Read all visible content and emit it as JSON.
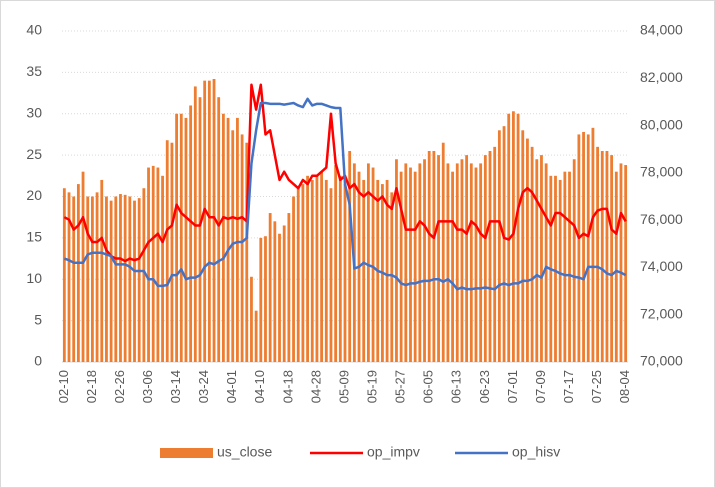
{
  "chart_data": {
    "type": "bar",
    "categories": [
      "02-10",
      null,
      null,
      null,
      null,
      null,
      "02-18",
      null,
      null,
      null,
      null,
      null,
      "02-26",
      null,
      null,
      null,
      null,
      null,
      "03-06",
      null,
      null,
      null,
      null,
      null,
      "03-14",
      null,
      null,
      null,
      null,
      null,
      "03-24",
      null,
      null,
      null,
      null,
      null,
      "04-01",
      null,
      null,
      null,
      null,
      null,
      "04-10",
      null,
      null,
      null,
      null,
      null,
      "04-18",
      null,
      null,
      null,
      null,
      null,
      "04-28",
      null,
      null,
      null,
      null,
      null,
      "05-09",
      null,
      null,
      null,
      null,
      null,
      "05-19",
      null,
      null,
      null,
      null,
      null,
      "05-27",
      null,
      null,
      null,
      null,
      null,
      "06-05",
      null,
      null,
      null,
      null,
      null,
      "06-13",
      null,
      null,
      null,
      null,
      null,
      "06-23",
      null,
      null,
      null,
      null,
      null,
      "07-01",
      null,
      null,
      null,
      null,
      null,
      "07-09",
      null,
      null,
      null,
      null,
      null,
      "07-17",
      null,
      null,
      null,
      null,
      null,
      "07-25",
      null,
      null,
      null,
      null,
      null,
      "08-04"
    ],
    "series": [
      {
        "name": "us_close",
        "type": "bar",
        "axis": "y2",
        "color": "#ed7d31",
        "values": [
          77350,
          77175,
          77000,
          77525,
          78050,
          77000,
          77000,
          77175,
          77700,
          77000,
          76825,
          77000,
          77105,
          77070,
          77000,
          76825,
          76930,
          77350,
          78225,
          78295,
          78225,
          77875,
          79380,
          79275,
          80500,
          80500,
          80325,
          80850,
          81655,
          81200,
          81900,
          81900,
          81970,
          81200,
          80500,
          80325,
          79800,
          80325,
          79625,
          79275,
          73605,
          72170,
          75250,
          75320,
          76300,
          75950,
          75425,
          75775,
          76300,
          77000,
          77350,
          77525,
          77875,
          77700,
          77875,
          78050,
          77700,
          77350,
          78330,
          77875,
          77525,
          78925,
          78400,
          78050,
          77700,
          78400,
          78225,
          77700,
          77525,
          77700,
          77175,
          78575,
          78050,
          78400,
          78225,
          78050,
          78400,
          78575,
          78925,
          78925,
          78750,
          79275,
          78400,
          78050,
          78400,
          78575,
          78750,
          78400,
          78225,
          78400,
          78750,
          78925,
          79100,
          79800,
          79975,
          80500,
          80605,
          80500,
          79800,
          79450,
          79100,
          78575,
          78750,
          78400,
          77875,
          77875,
          77700,
          78050,
          78050,
          78575,
          79625,
          79730,
          79625,
          79905,
          79100,
          78925,
          78925,
          78750,
          78050,
          78400,
          78330
        ]
      },
      {
        "name": "op_impv",
        "type": "line",
        "color": "#ff0000",
        "values": [
          17.5,
          17.2,
          16,
          16.5,
          17.5,
          15.5,
          14.5,
          14.5,
          15,
          13.5,
          12.8,
          12.5,
          12.5,
          12.2,
          12.5,
          12.3,
          12.5,
          13.5,
          14.5,
          15,
          15.5,
          14.5,
          16,
          16.5,
          19,
          18,
          17.5,
          17,
          16.5,
          16.5,
          18.5,
          17.5,
          17.5,
          16.5,
          17.5,
          17.3,
          17.5,
          17.3,
          17.5,
          17,
          33.5,
          30.5,
          33.5,
          27.5,
          28,
          25,
          22,
          23,
          22,
          21.5,
          21,
          22,
          21.5,
          22.5,
          22.5,
          23,
          23.5,
          30,
          24,
          22,
          22.5,
          21,
          21.5,
          20.5,
          20,
          20.5,
          20,
          19.5,
          20,
          19,
          18.5,
          21,
          18.5,
          16,
          16,
          16,
          17,
          16.5,
          15.5,
          15,
          17,
          17,
          17,
          17,
          16,
          16,
          15.5,
          17,
          16.5,
          15.5,
          15,
          17,
          17,
          17,
          15,
          14.8,
          15.5,
          18.5,
          20.5,
          21,
          20.5,
          19.5,
          18.5,
          17.5,
          16.5,
          18,
          18,
          17.5,
          17,
          16.5,
          15,
          15.5,
          15.2,
          17.5,
          18.3,
          18.5,
          18.5,
          16,
          15.5,
          18,
          17
        ]
      },
      {
        "name": "op_hisv",
        "type": "line",
        "color": "#4472c4",
        "values": [
          12.5,
          12.3,
          12,
          12,
          12,
          13,
          13.2,
          13.2,
          13.2,
          13,
          12.8,
          11.8,
          11.8,
          11.8,
          11.5,
          11,
          11,
          11,
          10,
          10,
          9.2,
          9.2,
          9.3,
          10.5,
          10.5,
          11.2,
          10,
          10.2,
          10.2,
          10.5,
          11.5,
          12,
          11.8,
          12.2,
          12.5,
          13.5,
          14.3,
          14.5,
          14.5,
          15,
          24,
          28,
          31.3,
          31.3,
          31.2,
          31.2,
          31.2,
          31.1,
          31.2,
          31.3,
          31,
          30.8,
          31.8,
          31,
          31.2,
          31.2,
          31,
          30.8,
          30.7,
          30.7,
          21.5,
          19,
          11.3,
          11.5,
          12,
          11.7,
          11.5,
          11,
          10.8,
          10.5,
          10.5,
          10.2,
          9.5,
          9.3,
          9.5,
          9.5,
          9.7,
          9.8,
          9.8,
          10,
          10,
          9.7,
          10,
          9.5,
          8.8,
          9,
          8.8,
          8.8,
          8.9,
          8.9,
          9,
          8.9,
          8.8,
          9.3,
          9.5,
          9.3,
          9.5,
          9.5,
          9.8,
          9.8,
          10,
          10.5,
          10.2,
          11.5,
          11.2,
          11,
          10.7,
          10.5,
          10.5,
          10.3,
          10.2,
          10,
          11.5,
          11.5,
          11.5,
          11.2,
          10.7,
          10.5,
          11,
          10.8,
          10.5
        ]
      }
    ],
    "ylim": [
      0,
      40
    ],
    "yticks": [
      0,
      5,
      10,
      15,
      20,
      25,
      30,
      35,
      40
    ],
    "y2lim": [
      70000,
      84000
    ],
    "y2ticks": [
      {
        "value": 70000,
        "label": "70,000"
      },
      {
        "value": 72000,
        "label": "72,000"
      },
      {
        "value": 74000,
        "label": "74,000"
      },
      {
        "value": 76000,
        "label": "76,000"
      },
      {
        "value": 78000,
        "label": "78,000"
      },
      {
        "value": 80000,
        "label": "80,000"
      },
      {
        "value": 82000,
        "label": "82,000"
      },
      {
        "value": 84000,
        "label": "84,000"
      }
    ],
    "grid": true,
    "legend": "bottom"
  }
}
